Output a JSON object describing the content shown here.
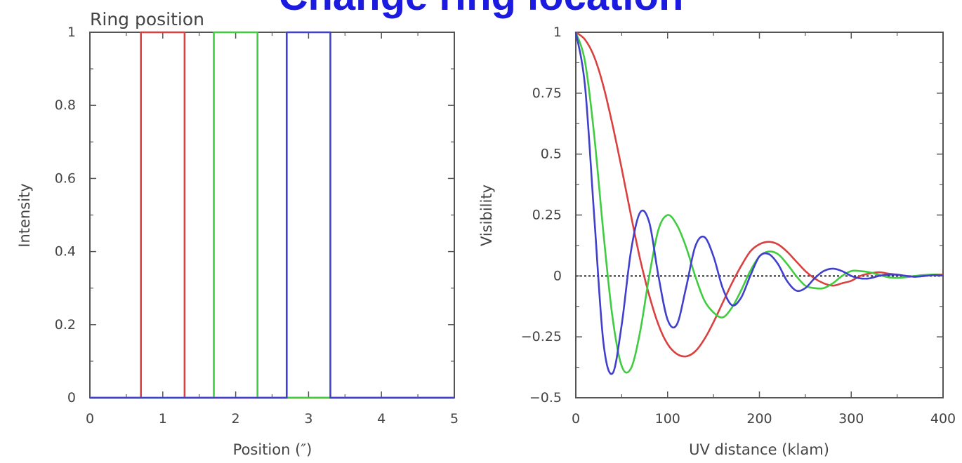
{
  "slide_title": "Change ring location",
  "chart_data": [
    {
      "type": "line",
      "title": "Ring position",
      "xlabel": "Position (″)",
      "ylabel": "Intensity",
      "xlim": [
        0,
        5
      ],
      "ylim": [
        0,
        1
      ],
      "x_ticks": [
        0,
        1,
        2,
        3,
        4,
        5
      ],
      "y_ticks": [
        0,
        0.2,
        0.4,
        0.6,
        0.8,
        1
      ],
      "x_tick_labels": [
        "0",
        "1",
        "2",
        "3",
        "4",
        "5"
      ],
      "y_tick_labels": [
        "0",
        "0.2",
        "0.4",
        "0.6",
        "0.8",
        "1"
      ],
      "grid": false,
      "series": [
        {
          "color": "#d94040",
          "x": [
            0,
            0.7,
            0.7,
            1.3,
            1.3,
            5
          ],
          "y": [
            0,
            0,
            1,
            1,
            0,
            0
          ]
        },
        {
          "color": "#40cc40",
          "x": [
            0,
            1.7,
            1.7,
            2.3,
            2.3,
            5
          ],
          "y": [
            0,
            0,
            1,
            1,
            0,
            0
          ]
        },
        {
          "color": "#4040cc",
          "x": [
            0,
            2.7,
            2.7,
            3.3,
            3.3,
            5
          ],
          "y": [
            0,
            0,
            1,
            1,
            0,
            0
          ]
        }
      ]
    },
    {
      "type": "line",
      "title": "",
      "xlabel": "UV distance (klam)",
      "ylabel": "Visibility",
      "xlim": [
        0,
        400
      ],
      "ylim": [
        -0.5,
        1
      ],
      "x_ticks": [
        0,
        100,
        200,
        300,
        400
      ],
      "y_ticks": [
        -0.5,
        -0.25,
        0,
        0.25,
        0.5,
        0.75,
        1
      ],
      "x_tick_labels": [
        "0",
        "100",
        "200",
        "300",
        "400"
      ],
      "y_tick_labels": [
        "−0.5",
        "−0.25",
        "0",
        "0.25",
        "0.5",
        "0.75",
        "1"
      ],
      "grid": false,
      "zero_line": true,
      "series": [
        {
          "color": "#d94040",
          "x": [
            0,
            10,
            20,
            30,
            40,
            50,
            60,
            70,
            80,
            90,
            100,
            110,
            120,
            130,
            140,
            150,
            160,
            170,
            180,
            190,
            200,
            210,
            220,
            230,
            240,
            250,
            260,
            270,
            280,
            290,
            300,
            310,
            320,
            330,
            340,
            350,
            360,
            370,
            380,
            390,
            400
          ],
          "y": [
            1.0,
            0.97,
            0.9,
            0.78,
            0.62,
            0.44,
            0.25,
            0.07,
            -0.08,
            -0.2,
            -0.28,
            -0.32,
            -0.33,
            -0.31,
            -0.26,
            -0.19,
            -0.11,
            -0.03,
            0.04,
            0.1,
            0.13,
            0.14,
            0.13,
            0.1,
            0.06,
            0.02,
            -0.01,
            -0.03,
            -0.04,
            -0.03,
            -0.02,
            0.0,
            0.01,
            0.015,
            0.01,
            0.005,
            0.0,
            -0.003,
            0.0,
            0.005,
            0.005
          ]
        },
        {
          "color": "#40cc40",
          "x": [
            0,
            10,
            20,
            30,
            40,
            50,
            60,
            70,
            80,
            90,
            100,
            110,
            120,
            130,
            140,
            150,
            160,
            170,
            180,
            190,
            200,
            210,
            220,
            230,
            240,
            250,
            260,
            270,
            280,
            290,
            300,
            310,
            320,
            330,
            340,
            350,
            360,
            370,
            380,
            390,
            400
          ],
          "y": [
            1.0,
            0.88,
            0.58,
            0.18,
            -0.17,
            -0.37,
            -0.38,
            -0.23,
            0.0,
            0.19,
            0.25,
            0.21,
            0.12,
            0.0,
            -0.1,
            -0.15,
            -0.17,
            -0.13,
            -0.06,
            0.02,
            0.08,
            0.1,
            0.09,
            0.05,
            0.0,
            -0.04,
            -0.05,
            -0.05,
            -0.03,
            0.0,
            0.02,
            0.02,
            0.015,
            0.005,
            -0.005,
            -0.008,
            -0.005,
            0.0,
            0.004,
            0.005,
            0.003
          ]
        },
        {
          "color": "#4040cc",
          "x": [
            0,
            10,
            20,
            30,
            40,
            50,
            60,
            70,
            80,
            90,
            100,
            110,
            120,
            130,
            140,
            150,
            160,
            170,
            180,
            190,
            200,
            210,
            220,
            230,
            240,
            250,
            260,
            270,
            280,
            290,
            300,
            310,
            320,
            330,
            340,
            350,
            360,
            370,
            380,
            390,
            400
          ],
          "y": [
            1.0,
            0.78,
            0.25,
            -0.27,
            -0.4,
            -0.2,
            0.1,
            0.26,
            0.22,
            0.0,
            -0.18,
            -0.2,
            -0.05,
            0.12,
            0.16,
            0.08,
            -0.05,
            -0.12,
            -0.09,
            0.0,
            0.08,
            0.09,
            0.05,
            -0.02,
            -0.06,
            -0.05,
            -0.01,
            0.02,
            0.03,
            0.02,
            0.0,
            -0.01,
            -0.01,
            0.0,
            0.005,
            0.005,
            0.0,
            -0.003,
            0.0,
            0.003,
            0.002
          ]
        }
      ]
    }
  ]
}
